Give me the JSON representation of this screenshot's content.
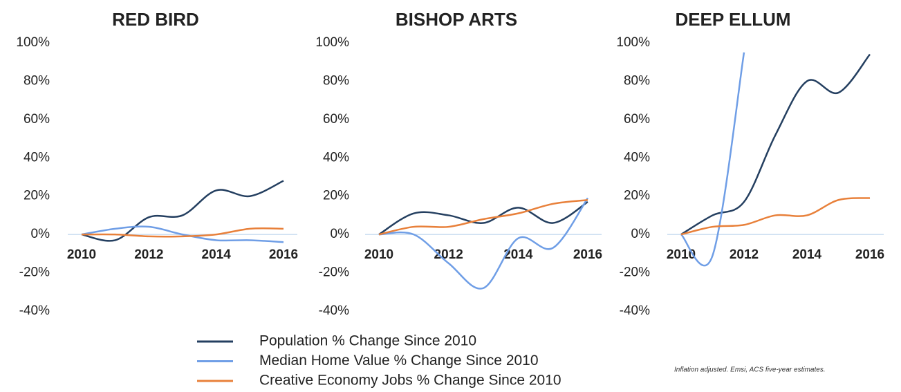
{
  "legend": [
    {
      "name": "Population % Change Since 2010",
      "color": "#243f60"
    },
    {
      "name": "Median Home Value % Change Since 2010",
      "color": "#6f9ee6"
    },
    {
      "name": "Creative Economy Jobs % Change Since 2010",
      "color": "#e8803a"
    }
  ],
  "note": "Inflation adjusted. Emsi, ACS five-year estimates.",
  "chart_data": [
    {
      "type": "line",
      "title": "RED BIRD",
      "x": [
        2010,
        2011,
        2012,
        2013,
        2014,
        2015,
        2016
      ],
      "series": [
        {
          "values": [
            0,
            -3,
            9,
            10,
            23,
            20,
            28
          ]
        },
        {
          "values": [
            0,
            3,
            4,
            0,
            -3,
            -3,
            -4
          ]
        },
        {
          "values": [
            0,
            0,
            -1,
            -1,
            0,
            3,
            3
          ]
        }
      ],
      "xlim": [
        2010,
        2016
      ],
      "xticks": [
        2010,
        2012,
        2014,
        2016
      ],
      "ylim": [
        -40,
        100
      ],
      "yticks": [
        {
          "value": -40,
          "label": "-40%"
        },
        {
          "value": -20,
          "label": "-20%"
        },
        {
          "value": 0,
          "label": "0%"
        },
        {
          "value": 20,
          "label": "20%"
        },
        {
          "value": 40,
          "label": "40%"
        },
        {
          "value": 60,
          "label": "60%"
        },
        {
          "value": 80,
          "label": "80%"
        },
        {
          "value": 100,
          "label": "100%"
        }
      ]
    },
    {
      "type": "line",
      "title": "BISHOP ARTS",
      "x": [
        2010,
        2011,
        2012,
        2013,
        2014,
        2015,
        2016
      ],
      "series": [
        {
          "values": [
            0,
            11,
            10,
            6,
            14,
            6,
            17
          ]
        },
        {
          "values": [
            0,
            0,
            -15,
            -28,
            -2,
            -7,
            19
          ]
        },
        {
          "values": [
            0,
            4,
            4,
            8,
            11,
            16,
            18
          ]
        }
      ],
      "xlim": [
        2010,
        2016
      ],
      "xticks": [
        2010,
        2012,
        2014,
        2016
      ],
      "ylim": [
        -40,
        100
      ],
      "yticks": [
        {
          "value": -40,
          "label": "-40%"
        },
        {
          "value": -20,
          "label": "-20%"
        },
        {
          "value": 0,
          "label": "0%"
        },
        {
          "value": 20,
          "label": "20%"
        },
        {
          "value": 40,
          "label": "40%"
        },
        {
          "value": 60,
          "label": "60%"
        },
        {
          "value": 80,
          "label": "80%"
        },
        {
          "value": 100,
          "label": "100%"
        }
      ]
    },
    {
      "type": "line",
      "title": "DEEP ELLUM",
      "x": [
        2010,
        2011,
        2012,
        2013,
        2014,
        2015,
        2016
      ],
      "series": [
        {
          "values": [
            0,
            10,
            17,
            52,
            80,
            74,
            94
          ]
        },
        {
          "values": [
            0,
            -11,
            95,
            null,
            null,
            null,
            null
          ]
        },
        {
          "values": [
            0,
            4,
            5,
            10,
            10,
            18,
            19
          ]
        }
      ],
      "xlim": [
        2010,
        2016
      ],
      "xticks": [
        2010,
        2012,
        2014,
        2016
      ],
      "ylim": [
        -40,
        100
      ],
      "yticks": [
        {
          "value": -40,
          "label": "-40%"
        },
        {
          "value": -20,
          "label": "-20%"
        },
        {
          "value": 0,
          "label": "0%"
        },
        {
          "value": 20,
          "label": "20%"
        },
        {
          "value": 40,
          "label": "40%"
        },
        {
          "value": 60,
          "label": "60%"
        },
        {
          "value": 80,
          "label": "80%"
        },
        {
          "value": 100,
          "label": "100%"
        }
      ]
    }
  ]
}
